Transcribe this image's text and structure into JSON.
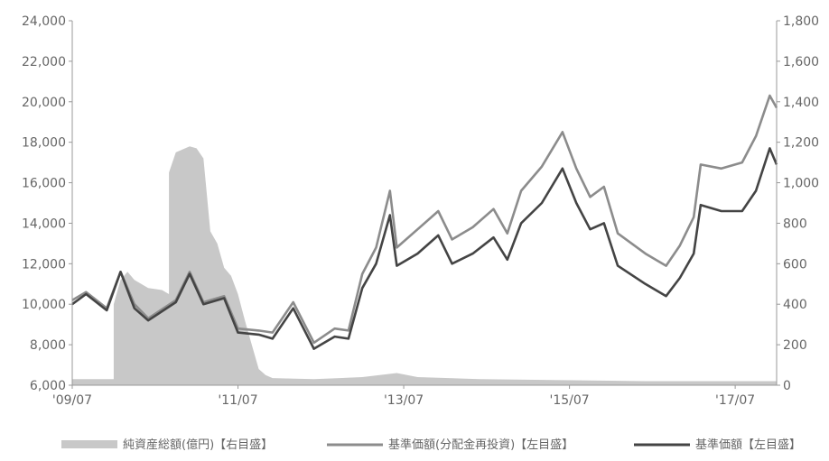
{
  "chart_data": {
    "type": "line",
    "title": "",
    "xlabel": "",
    "ylabel": "",
    "x_ticks": [
      "'09/07",
      "'11/07",
      "'13/07",
      "'15/07",
      "'17/07"
    ],
    "x_range": [
      "2009-07",
      "2018-01"
    ],
    "left_axis": {
      "ylim": [
        6000,
        24000
      ],
      "ticks": [
        "6,000",
        "8,000",
        "10,000",
        "12,000",
        "14,000",
        "16,000",
        "18,000",
        "20,000",
        "22,000",
        "24,000"
      ]
    },
    "right_axis": {
      "ylim": [
        0,
        1800
      ],
      "ticks": [
        "0",
        "200",
        "400",
        "600",
        "800",
        "1,000",
        "1,200",
        "1,400",
        "1,600",
        "1,800"
      ]
    },
    "legend": {
      "placement": "bottom",
      "items": [
        {
          "label": "純資産総額(億円)【右目盛】",
          "color": "#c8c8c8",
          "kind": "area"
        },
        {
          "label": "基準価額(分配金再投資)【左目盛】",
          "color": "#8c8c8c",
          "kind": "line"
        },
        {
          "label": "基準価額【左目盛】",
          "color": "#444444",
          "kind": "line"
        }
      ]
    },
    "series": [
      {
        "name": "純資産総額(億円)【右目盛】",
        "axis": "right",
        "type": "area",
        "color": "#c8c8c8",
        "points": [
          [
            "2009-07",
            30
          ],
          [
            "2009-12",
            30
          ],
          [
            "2010-01",
            30
          ],
          [
            "2010-01",
            400
          ],
          [
            "2010-02",
            520
          ],
          [
            "2010-03",
            560
          ],
          [
            "2010-04",
            520
          ],
          [
            "2010-06",
            480
          ],
          [
            "2010-08",
            470
          ],
          [
            "2010-09",
            450
          ],
          [
            "2010-09",
            1050
          ],
          [
            "2010-10",
            1150
          ],
          [
            "2010-12",
            1180
          ],
          [
            "2011-01",
            1170
          ],
          [
            "2011-02",
            1120
          ],
          [
            "2011-03",
            760
          ],
          [
            "2011-04",
            700
          ],
          [
            "2011-05",
            580
          ],
          [
            "2011-06",
            540
          ],
          [
            "2011-07",
            450
          ],
          [
            "2011-08",
            320
          ],
          [
            "2011-09",
            200
          ],
          [
            "2011-10",
            80
          ],
          [
            "2011-11",
            50
          ],
          [
            "2011-12",
            35
          ],
          [
            "2012-06",
            30
          ],
          [
            "2013-01",
            40
          ],
          [
            "2013-06",
            60
          ],
          [
            "2013-09",
            40
          ],
          [
            "2014-06",
            30
          ],
          [
            "2015-06",
            25
          ],
          [
            "2016-06",
            20
          ],
          [
            "2017-06",
            20
          ],
          [
            "2018-01",
            20
          ]
        ]
      },
      {
        "name": "基準価額(分配金再投資)【左目盛】",
        "axis": "left",
        "type": "line",
        "color": "#8c8c8c",
        "points": [
          [
            "2009-07",
            10200
          ],
          [
            "2009-09",
            10600
          ],
          [
            "2009-12",
            9800
          ],
          [
            "2010-02",
            11600
          ],
          [
            "2010-04",
            10000
          ],
          [
            "2010-06",
            9300
          ],
          [
            "2010-10",
            10200
          ],
          [
            "2010-12",
            11600
          ],
          [
            "2011-02",
            10100
          ],
          [
            "2011-05",
            10400
          ],
          [
            "2011-07",
            8800
          ],
          [
            "2011-10",
            8700
          ],
          [
            "2011-12",
            8600
          ],
          [
            "2012-03",
            10100
          ],
          [
            "2012-06",
            8100
          ],
          [
            "2012-09",
            8800
          ],
          [
            "2012-11",
            8700
          ],
          [
            "2013-01",
            11500
          ],
          [
            "2013-03",
            12800
          ],
          [
            "2013-05",
            15600
          ],
          [
            "2013-06",
            12800
          ],
          [
            "2013-09",
            13700
          ],
          [
            "2013-12",
            14600
          ],
          [
            "2014-02",
            13200
          ],
          [
            "2014-05",
            13800
          ],
          [
            "2014-08",
            14700
          ],
          [
            "2014-10",
            13500
          ],
          [
            "2014-12",
            15600
          ],
          [
            "2015-03",
            16800
          ],
          [
            "2015-06",
            18500
          ],
          [
            "2015-08",
            16700
          ],
          [
            "2015-10",
            15300
          ],
          [
            "2015-12",
            15800
          ],
          [
            "2016-02",
            13500
          ],
          [
            "2016-06",
            12500
          ],
          [
            "2016-09",
            11900
          ],
          [
            "2016-11",
            12900
          ],
          [
            "2017-01",
            14300
          ],
          [
            "2017-02",
            16900
          ],
          [
            "2017-05",
            16700
          ],
          [
            "2017-08",
            17000
          ],
          [
            "2017-10",
            18300
          ],
          [
            "2017-12",
            20300
          ],
          [
            "2018-01",
            19700
          ]
        ]
      },
      {
        "name": "基準価額【左目盛】",
        "axis": "left",
        "type": "line",
        "color": "#444444",
        "points": [
          [
            "2009-07",
            10000
          ],
          [
            "2009-09",
            10500
          ],
          [
            "2009-12",
            9700
          ],
          [
            "2010-02",
            11600
          ],
          [
            "2010-04",
            9800
          ],
          [
            "2010-06",
            9200
          ],
          [
            "2010-10",
            10100
          ],
          [
            "2010-12",
            11500
          ],
          [
            "2011-02",
            10000
          ],
          [
            "2011-05",
            10300
          ],
          [
            "2011-07",
            8600
          ],
          [
            "2011-10",
            8500
          ],
          [
            "2011-12",
            8300
          ],
          [
            "2012-03",
            9800
          ],
          [
            "2012-06",
            7800
          ],
          [
            "2012-09",
            8400
          ],
          [
            "2012-11",
            8300
          ],
          [
            "2013-01",
            10800
          ],
          [
            "2013-03",
            12000
          ],
          [
            "2013-05",
            14400
          ],
          [
            "2013-06",
            11900
          ],
          [
            "2013-09",
            12500
          ],
          [
            "2013-12",
            13400
          ],
          [
            "2014-02",
            12000
          ],
          [
            "2014-05",
            12500
          ],
          [
            "2014-08",
            13300
          ],
          [
            "2014-10",
            12200
          ],
          [
            "2014-12",
            14000
          ],
          [
            "2015-03",
            15000
          ],
          [
            "2015-06",
            16700
          ],
          [
            "2015-08",
            15000
          ],
          [
            "2015-10",
            13700
          ],
          [
            "2015-12",
            14000
          ],
          [
            "2016-02",
            11900
          ],
          [
            "2016-06",
            11000
          ],
          [
            "2016-09",
            10400
          ],
          [
            "2016-11",
            11300
          ],
          [
            "2017-01",
            12500
          ],
          [
            "2017-02",
            14900
          ],
          [
            "2017-05",
            14600
          ],
          [
            "2017-08",
            14600
          ],
          [
            "2017-10",
            15600
          ],
          [
            "2017-12",
            17700
          ],
          [
            "2018-01",
            16900
          ]
        ]
      }
    ]
  }
}
